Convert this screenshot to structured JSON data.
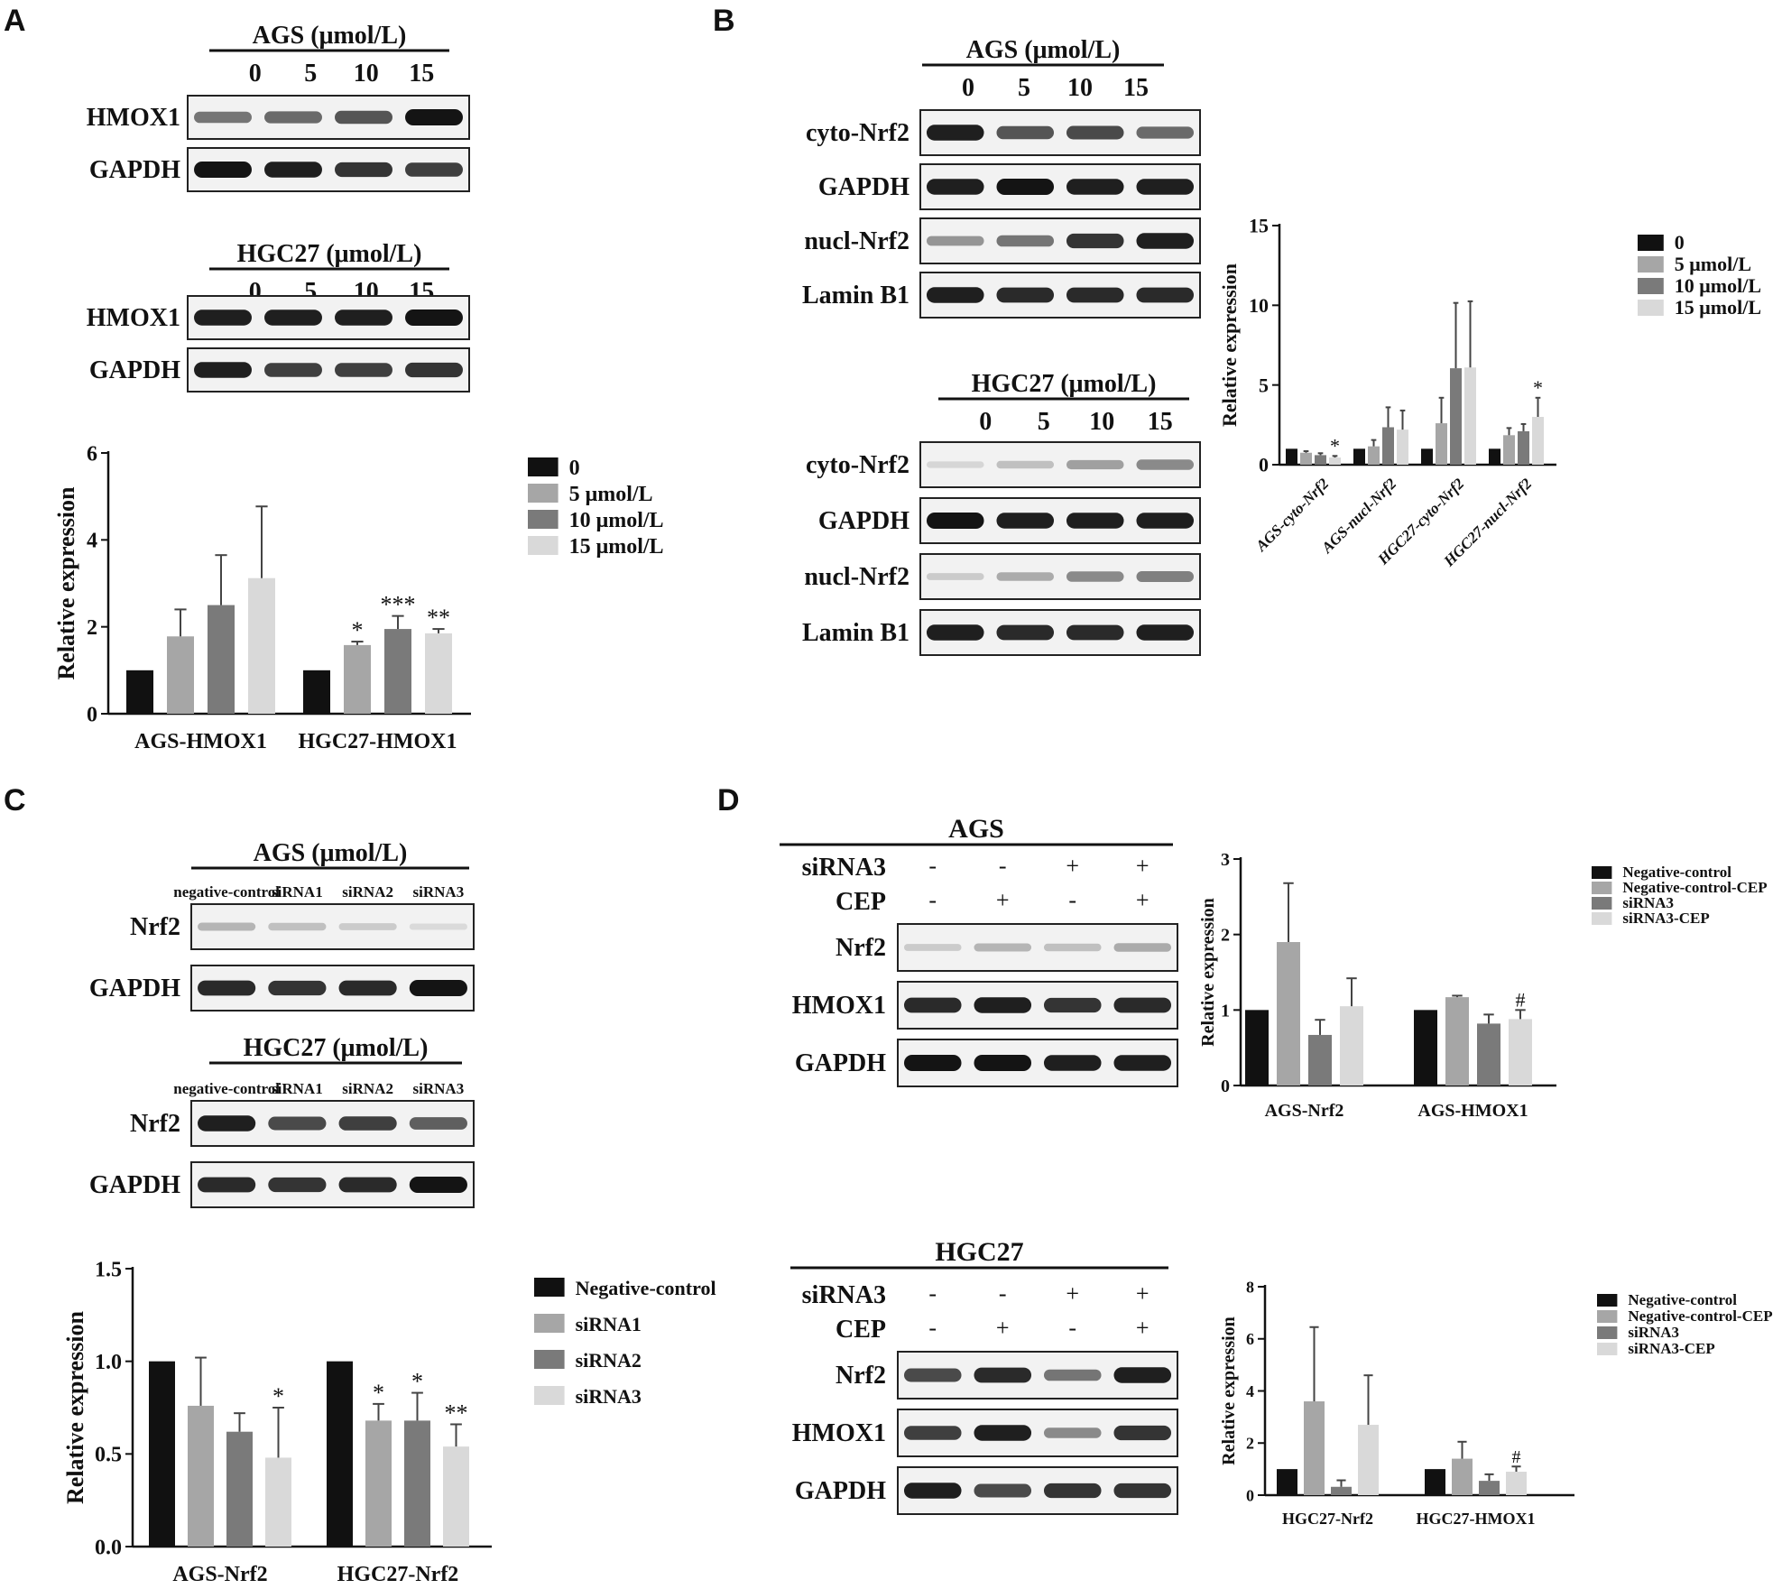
{
  "colors": {
    "black": "#111111",
    "light_gray": "#a6a6a6",
    "mid_gray": "#7a7a7a",
    "pale_gray": "#d9d9d9"
  },
  "panels": {
    "A": {
      "letter": "A",
      "blots": [
        {
          "group": "AGS (μmol/L)",
          "lanes": [
            "0",
            "5",
            "10",
            "15"
          ],
          "rows": [
            {
              "label": "HMOX1",
              "intensity": [
                0.55,
                0.6,
                0.7,
                1.0
              ]
            },
            {
              "label": "GAPDH",
              "intensity": [
                1.0,
                0.95,
                0.85,
                0.8
              ]
            }
          ]
        },
        {
          "group": "HGC27 (μmol/L)",
          "lanes": [
            "0",
            "5",
            "10",
            "15"
          ],
          "rows": [
            {
              "label": "HMOX1",
              "intensity": [
                0.95,
                0.95,
                0.95,
                1.0
              ]
            },
            {
              "label": "GAPDH",
              "intensity": [
                0.95,
                0.8,
                0.8,
                0.85
              ]
            }
          ]
        }
      ]
    },
    "B": {
      "letter": "B",
      "blots": [
        {
          "group": "AGS (μmol/L)",
          "lanes": [
            "0",
            "5",
            "10",
            "15"
          ],
          "rows": [
            {
              "label": "cyto-Nrf2",
              "intensity": [
                0.95,
                0.7,
                0.75,
                0.6
              ]
            },
            {
              "label": "GAPDH",
              "intensity": [
                0.95,
                1.0,
                0.95,
                0.95
              ]
            },
            {
              "label": "nucl-Nrf2",
              "intensity": [
                0.4,
                0.55,
                0.85,
                0.95
              ]
            },
            {
              "label": "Lamin B1",
              "intensity": [
                0.95,
                0.9,
                0.9,
                0.9
              ]
            }
          ]
        },
        {
          "group": "HGC27 (μmol/L)",
          "lanes": [
            "0",
            "5",
            "10",
            "15"
          ],
          "rows": [
            {
              "label": "cyto-Nrf2",
              "intensity": [
                0.1,
                0.2,
                0.35,
                0.45
              ]
            },
            {
              "label": "GAPDH",
              "intensity": [
                1.0,
                0.95,
                0.95,
                0.95
              ]
            },
            {
              "label": "nucl-Nrf2",
              "intensity": [
                0.15,
                0.3,
                0.45,
                0.5
              ]
            },
            {
              "label": "Lamin B1",
              "intensity": [
                0.95,
                0.9,
                0.9,
                0.95
              ]
            }
          ]
        }
      ]
    },
    "C": {
      "letter": "C",
      "blots": [
        {
          "group": "AGS (μmol/L)",
          "lanes": [
            "negative-control",
            "siRNA1",
            "siRNA2",
            "siRNA3"
          ],
          "rows": [
            {
              "label": "Nrf2",
              "intensity": [
                0.25,
                0.2,
                0.15,
                0.08
              ]
            },
            {
              "label": "GAPDH",
              "intensity": [
                0.9,
                0.85,
                0.9,
                1.0
              ]
            }
          ]
        },
        {
          "group": "HGC27 (μmol/L)",
          "lanes": [
            "negative-control",
            "siRNA1",
            "siRNA2",
            "siRNA3"
          ],
          "rows": [
            {
              "label": "Nrf2",
              "intensity": [
                0.95,
                0.75,
                0.8,
                0.65
              ]
            },
            {
              "label": "GAPDH",
              "intensity": [
                0.9,
                0.85,
                0.9,
                1.0
              ]
            }
          ]
        }
      ]
    },
    "D": {
      "letter": "D",
      "blots": [
        {
          "group": "AGS",
          "conditions": [
            {
              "label": "siRNA3",
              "signs": [
                "-",
                "-",
                "+",
                "+"
              ]
            },
            {
              "label": "CEP",
              "signs": [
                "-",
                "+",
                "-",
                "+"
              ]
            }
          ],
          "rows": [
            {
              "label": "Nrf2",
              "intensity": [
                0.15,
                0.25,
                0.2,
                0.3
              ]
            },
            {
              "label": "HMOX1",
              "intensity": [
                0.9,
                0.95,
                0.85,
                0.9
              ]
            },
            {
              "label": "GAPDH",
              "intensity": [
                1.0,
                1.0,
                0.95,
                0.95
              ]
            }
          ]
        },
        {
          "group": "HGC27",
          "conditions": [
            {
              "label": "siRNA3",
              "signs": [
                "-",
                "-",
                "+",
                "+"
              ]
            },
            {
              "label": "CEP",
              "signs": [
                "-",
                "+",
                "-",
                "+"
              ]
            }
          ],
          "rows": [
            {
              "label": "Nrf2",
              "intensity": [
                0.75,
                0.9,
                0.55,
                0.95
              ]
            },
            {
              "label": "HMOX1",
              "intensity": [
                0.8,
                0.95,
                0.45,
                0.85
              ]
            },
            {
              "label": "GAPDH",
              "intensity": [
                0.95,
                0.75,
                0.85,
                0.85
              ]
            }
          ]
        }
      ]
    }
  },
  "chart_data": [
    {
      "id": "A",
      "type": "bar",
      "ylabel": "Relative expression",
      "ylim": [
        0,
        6
      ],
      "yticks": [
        "0",
        "2",
        "4",
        "6"
      ],
      "categories": [
        "AGS-HMOX1",
        "HGC27-HMOX1"
      ],
      "series": [
        {
          "name": "0",
          "color": "#111111",
          "values": [
            1.0,
            1.0
          ],
          "errors": [
            0,
            0
          ]
        },
        {
          "name": "5 μmol/L",
          "color": "#a6a6a6",
          "values": [
            1.78,
            1.58
          ],
          "errors": [
            0.62,
            0.08
          ]
        },
        {
          "name": "10 μmol/L",
          "color": "#7a7a7a",
          "values": [
            2.5,
            1.95
          ],
          "errors": [
            1.15,
            0.3
          ]
        },
        {
          "name": "15 μmol/L",
          "color": "#d9d9d9",
          "values": [
            3.12,
            1.85
          ],
          "errors": [
            1.65,
            0.1
          ]
        }
      ],
      "annotations": [
        [
          "",
          ""
        ],
        [
          "",
          "*"
        ],
        [
          "",
          "***"
        ],
        [
          "",
          "**"
        ]
      ],
      "legend": "right"
    },
    {
      "id": "B",
      "type": "bar",
      "ylabel": "Relative expression",
      "ylim": [
        0,
        15
      ],
      "yticks": [
        "0",
        "5",
        "10",
        "15"
      ],
      "categories": [
        "AGS-cyto-Nrf2",
        "AGS-nucl-Nrf2",
        "HGC27-cyto-Nrf2",
        "HGC27-nucl-Nrf2"
      ],
      "series": [
        {
          "name": "0",
          "color": "#111111",
          "values": [
            1.0,
            1.0,
            1.0,
            1.0
          ],
          "errors": [
            0,
            0,
            0,
            0
          ]
        },
        {
          "name": "5 μmol/L",
          "color": "#a6a6a6",
          "values": [
            0.75,
            1.15,
            2.6,
            1.85
          ],
          "errors": [
            0.1,
            0.4,
            1.6,
            0.45
          ]
        },
        {
          "name": "10 μmol/L",
          "color": "#7a7a7a",
          "values": [
            0.6,
            2.35,
            6.05,
            2.1
          ],
          "errors": [
            0.12,
            1.25,
            4.1,
            0.45
          ]
        },
        {
          "name": "15 μmol/L",
          "color": "#d9d9d9",
          "values": [
            0.45,
            2.2,
            6.1,
            3.0
          ],
          "errors": [
            0.1,
            1.2,
            4.15,
            1.2
          ]
        }
      ],
      "annotations": [
        [
          "",
          "",
          "",
          ""
        ],
        [
          "",
          "",
          "",
          ""
        ],
        [
          "",
          "",
          "",
          ""
        ],
        [
          "*",
          "",
          "",
          "*"
        ]
      ],
      "legend": "right"
    },
    {
      "id": "C",
      "type": "bar",
      "ylabel": "Relative expression",
      "ylim": [
        0,
        1.5
      ],
      "yticks": [
        "0.0",
        "0.5",
        "1.0",
        "1.5"
      ],
      "categories": [
        "AGS-Nrf2",
        "HGC27-Nrf2"
      ],
      "series": [
        {
          "name": "Negative-control",
          "color": "#111111",
          "values": [
            1.0,
            1.0
          ],
          "errors": [
            0,
            0
          ]
        },
        {
          "name": "siRNA1",
          "color": "#a6a6a6",
          "values": [
            0.76,
            0.68
          ],
          "errors": [
            0.26,
            0.09
          ]
        },
        {
          "name": "siRNA2",
          "color": "#7a7a7a",
          "values": [
            0.62,
            0.68
          ],
          "errors": [
            0.1,
            0.15
          ]
        },
        {
          "name": "siRNA3",
          "color": "#d9d9d9",
          "values": [
            0.48,
            0.54
          ],
          "errors": [
            0.27,
            0.12
          ]
        }
      ],
      "annotations": [
        [
          "",
          ""
        ],
        [
          "",
          "*"
        ],
        [
          "",
          "*"
        ],
        [
          "*",
          "**"
        ]
      ],
      "legend": "right"
    },
    {
      "id": "D-AGS",
      "type": "bar",
      "ylabel": "Relative expression",
      "ylim": [
        0,
        3
      ],
      "yticks": [
        "0",
        "1",
        "2",
        "3"
      ],
      "categories": [
        "AGS-Nrf2",
        "AGS-HMOX1"
      ],
      "series": [
        {
          "name": "Negative-control",
          "color": "#111111",
          "values": [
            1.0,
            1.0
          ],
          "errors": [
            0,
            0
          ]
        },
        {
          "name": "Negative-control-CEP",
          "color": "#a6a6a6",
          "values": [
            1.9,
            1.17
          ],
          "errors": [
            0.78,
            0.02
          ]
        },
        {
          "name": "siRNA3",
          "color": "#7a7a7a",
          "values": [
            0.67,
            0.82
          ],
          "errors": [
            0.2,
            0.12
          ]
        },
        {
          "name": "siRNA3-CEP",
          "color": "#d9d9d9",
          "values": [
            1.05,
            0.88
          ],
          "errors": [
            0.37,
            0.12
          ]
        }
      ],
      "annotations": [
        [
          "",
          ""
        ],
        [
          "",
          ""
        ],
        [
          "",
          ""
        ],
        [
          "",
          "#"
        ]
      ],
      "legend": "right"
    },
    {
      "id": "D-HGC27",
      "type": "bar",
      "ylabel": "Relative expression",
      "ylim": [
        0,
        8
      ],
      "yticks": [
        "0",
        "2",
        "4",
        "6",
        "8"
      ],
      "categories": [
        "HGC27-Nrf2",
        "HGC27-HMOX1"
      ],
      "series": [
        {
          "name": "Negative-control",
          "color": "#111111",
          "values": [
            1.0,
            1.0
          ],
          "errors": [
            0,
            0
          ]
        },
        {
          "name": "Negative-control-CEP",
          "color": "#a6a6a6",
          "values": [
            3.6,
            1.4
          ],
          "errors": [
            2.85,
            0.65
          ]
        },
        {
          "name": "siRNA3",
          "color": "#7a7a7a",
          "values": [
            0.32,
            0.55
          ],
          "errors": [
            0.25,
            0.25
          ]
        },
        {
          "name": "siRNA3-CEP",
          "color": "#d9d9d9",
          "values": [
            2.7,
            0.9
          ],
          "errors": [
            1.9,
            0.2
          ]
        }
      ],
      "annotations": [
        [
          "",
          ""
        ],
        [
          "",
          ""
        ],
        [
          "",
          ""
        ],
        [
          "",
          "#"
        ]
      ],
      "legend": "right"
    }
  ]
}
